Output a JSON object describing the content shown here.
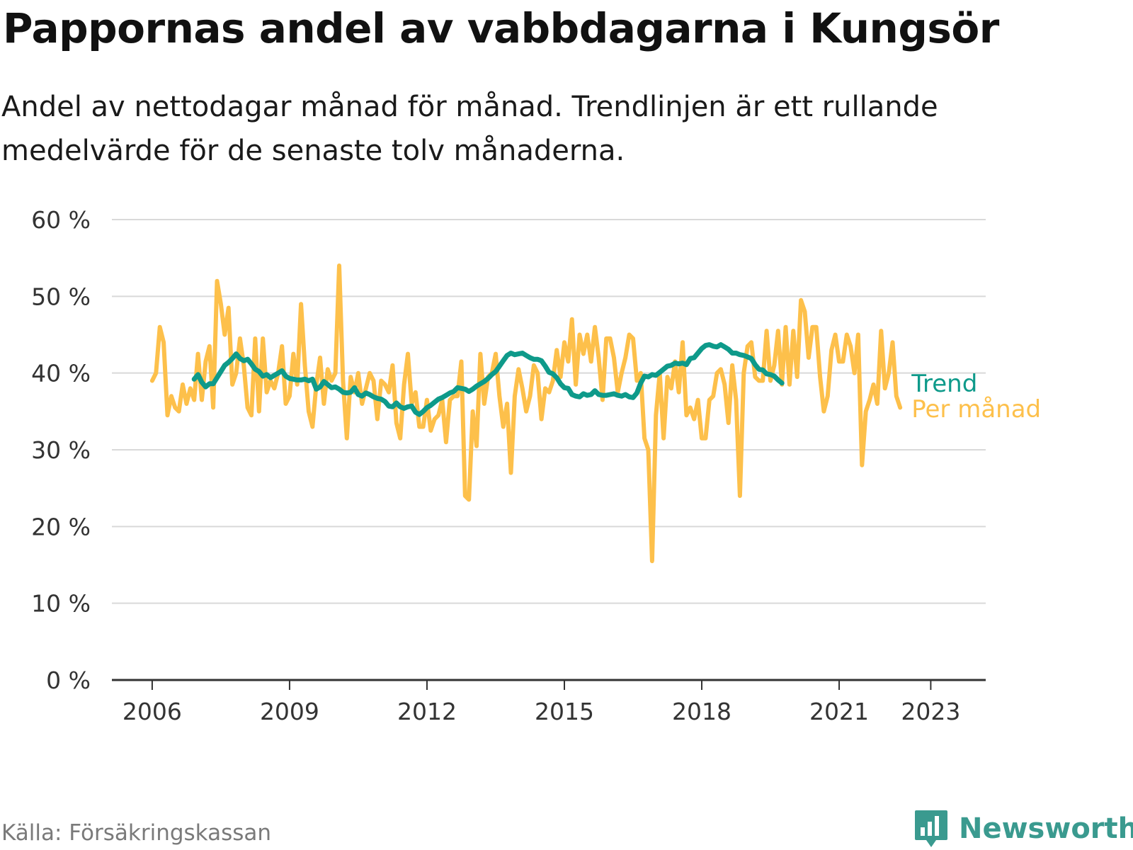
{
  "header": {
    "title": "Pappornas andel av vabbdagarna i Kungsör",
    "subtitle": "Andel av nettodagar månad för månad. Trendlinjen är ett rullande medelvärde för de senaste tolv månaderna."
  },
  "footer": {
    "source": "Källa: Försäkringskassan",
    "brand": "Newsworthy",
    "brand_icon": "bar-chart-speech-bubble-icon"
  },
  "colors": {
    "monthly": "#fdc04b",
    "trend": "#0e9a8a",
    "grid": "#d9d9d9",
    "axis": "#333333",
    "brand": "#3a9a8f"
  },
  "chart_data": {
    "type": "line",
    "title": "Pappornas andel av vabbdagarna i Kungsör",
    "xlabel": "",
    "ylabel": "",
    "x_unit": "decimal year",
    "xlim": [
      2005.12,
      2024.2
    ],
    "ylim": [
      0,
      60
    ],
    "y_ticks": [
      0,
      10,
      20,
      30,
      40,
      50,
      60
    ],
    "y_tick_labels": [
      "0 %",
      "10 %",
      "20 %",
      "30 %",
      "40 %",
      "50 %",
      "60 %"
    ],
    "x_ticks": [
      2006,
      2009,
      2012,
      2015,
      2018,
      2021,
      2023
    ],
    "x_tick_labels": [
      "2006",
      "2009",
      "2012",
      "2015",
      "2018",
      "2021",
      "2023"
    ],
    "grid": true,
    "legend": "end-of-line labels",
    "series": [
      {
        "name": "Per månad",
        "x_start": 2006.0,
        "x_step": 0.08333,
        "values": [
          39,
          40,
          46,
          44,
          34.5,
          37,
          35.5,
          35,
          38.5,
          36,
          38,
          36.5,
          42.5,
          36.5,
          41.5,
          43.5,
          35.5,
          52,
          49,
          45,
          48.5,
          38.5,
          40,
          44.5,
          41,
          35.5,
          34.5,
          44.5,
          35,
          44.5,
          37.5,
          39,
          38,
          40,
          43.5,
          36,
          37,
          42.5,
          38.5,
          49,
          41,
          35,
          33,
          38.5,
          42,
          36,
          40.5,
          39,
          40,
          54,
          39,
          31.5,
          39.5,
          37.5,
          40,
          36,
          38,
          40,
          39,
          34,
          39,
          38.5,
          37.5,
          41,
          33.5,
          31.5,
          38.5,
          42.5,
          36,
          37.5,
          33,
          33,
          36.5,
          32.5,
          34,
          34.5,
          36.5,
          31,
          36.5,
          37,
          37,
          41.5,
          24,
          23.5,
          35,
          30.5,
          42.5,
          36,
          39.5,
          40,
          42.5,
          37,
          33,
          36,
          27,
          37,
          40.5,
          38,
          35,
          37,
          41,
          40,
          34,
          38,
          37.5,
          39,
          43,
          39.5,
          44,
          41.5,
          47,
          38.5,
          45,
          42.5,
          45,
          41.5,
          46,
          42,
          36.5,
          44.5,
          44.5,
          42,
          37.5,
          40,
          42,
          45,
          44.5,
          39,
          40,
          31.5,
          30,
          15.5,
          34.5,
          40,
          31.5,
          39.5,
          38,
          41.5,
          37.5,
          44,
          34.5,
          35.5,
          34,
          36.5,
          31.5,
          31.5,
          36.5,
          37,
          40,
          40.5,
          38.5,
          33.5,
          41,
          36.5,
          24,
          40,
          43.5,
          44,
          39.5,
          39,
          39,
          45.5,
          39,
          41,
          45.5,
          38.5,
          46,
          38.5,
          45.5,
          39.5,
          49.5,
          48,
          42,
          46,
          46,
          39.5,
          35,
          37,
          43,
          45,
          41.5,
          41.5,
          45,
          43.5,
          40,
          45,
          28,
          35,
          36.5,
          38.5,
          36,
          45.5,
          38,
          40,
          44,
          37,
          35.5
        ]
      },
      {
        "name": "Trend",
        "x_start": 2006.9167,
        "x_step": 0.08333,
        "values": [
          39.2,
          39.8,
          38.8,
          38.2,
          38.6,
          38.6,
          39.4,
          40.2,
          41,
          41.4,
          41.9,
          42.5,
          41.9,
          41.6,
          41.8,
          41.2,
          40.5,
          40.2,
          39.6,
          39.8,
          39.4,
          39.7,
          40,
          40.3,
          39.6,
          39.3,
          39.2,
          39.1,
          39.1,
          39.2,
          39,
          39.2,
          37.9,
          38.2,
          38.9,
          38.5,
          38.1,
          38.2,
          37.9,
          37.5,
          37.4,
          37.5,
          38.1,
          37.2,
          37,
          37.4,
          37.2,
          36.9,
          36.7,
          36.6,
          36.3,
          35.7,
          35.6,
          36.1,
          35.6,
          35.4,
          35.6,
          35.7,
          34.9,
          34.6,
          35,
          35.5,
          35.8,
          36.2,
          36.6,
          36.8,
          37.1,
          37.4,
          37.6,
          38.1,
          38,
          37.9,
          37.6,
          37.9,
          38.3,
          38.6,
          38.9,
          39.3,
          39.8,
          40.2,
          40.9,
          41.6,
          42.3,
          42.6,
          42.4,
          42.5,
          42.6,
          42.3,
          42,
          41.8,
          41.8,
          41.6,
          40.9,
          40.1,
          39.9,
          39.4,
          38.6,
          38.1,
          38,
          37.2,
          37,
          36.9,
          37.3,
          37.1,
          37.2,
          37.7,
          37.2,
          37.1,
          37.1,
          37.2,
          37.3,
          37.1,
          37,
          37.2,
          36.9,
          36.8,
          37.4,
          38.7,
          39.6,
          39.5,
          39.8,
          39.7,
          40.1,
          40.5,
          40.9,
          41,
          41.3,
          41.2,
          41.3,
          41.1,
          41.9,
          42,
          42.6,
          43.2,
          43.6,
          43.7,
          43.5,
          43.4,
          43.7,
          43.4,
          43.1,
          42.6,
          42.6,
          42.4,
          42.3,
          42.1,
          41.9,
          41.1,
          40.5,
          40.4,
          39.9,
          39.8,
          39.6,
          39.1,
          38.7
        ]
      }
    ]
  }
}
